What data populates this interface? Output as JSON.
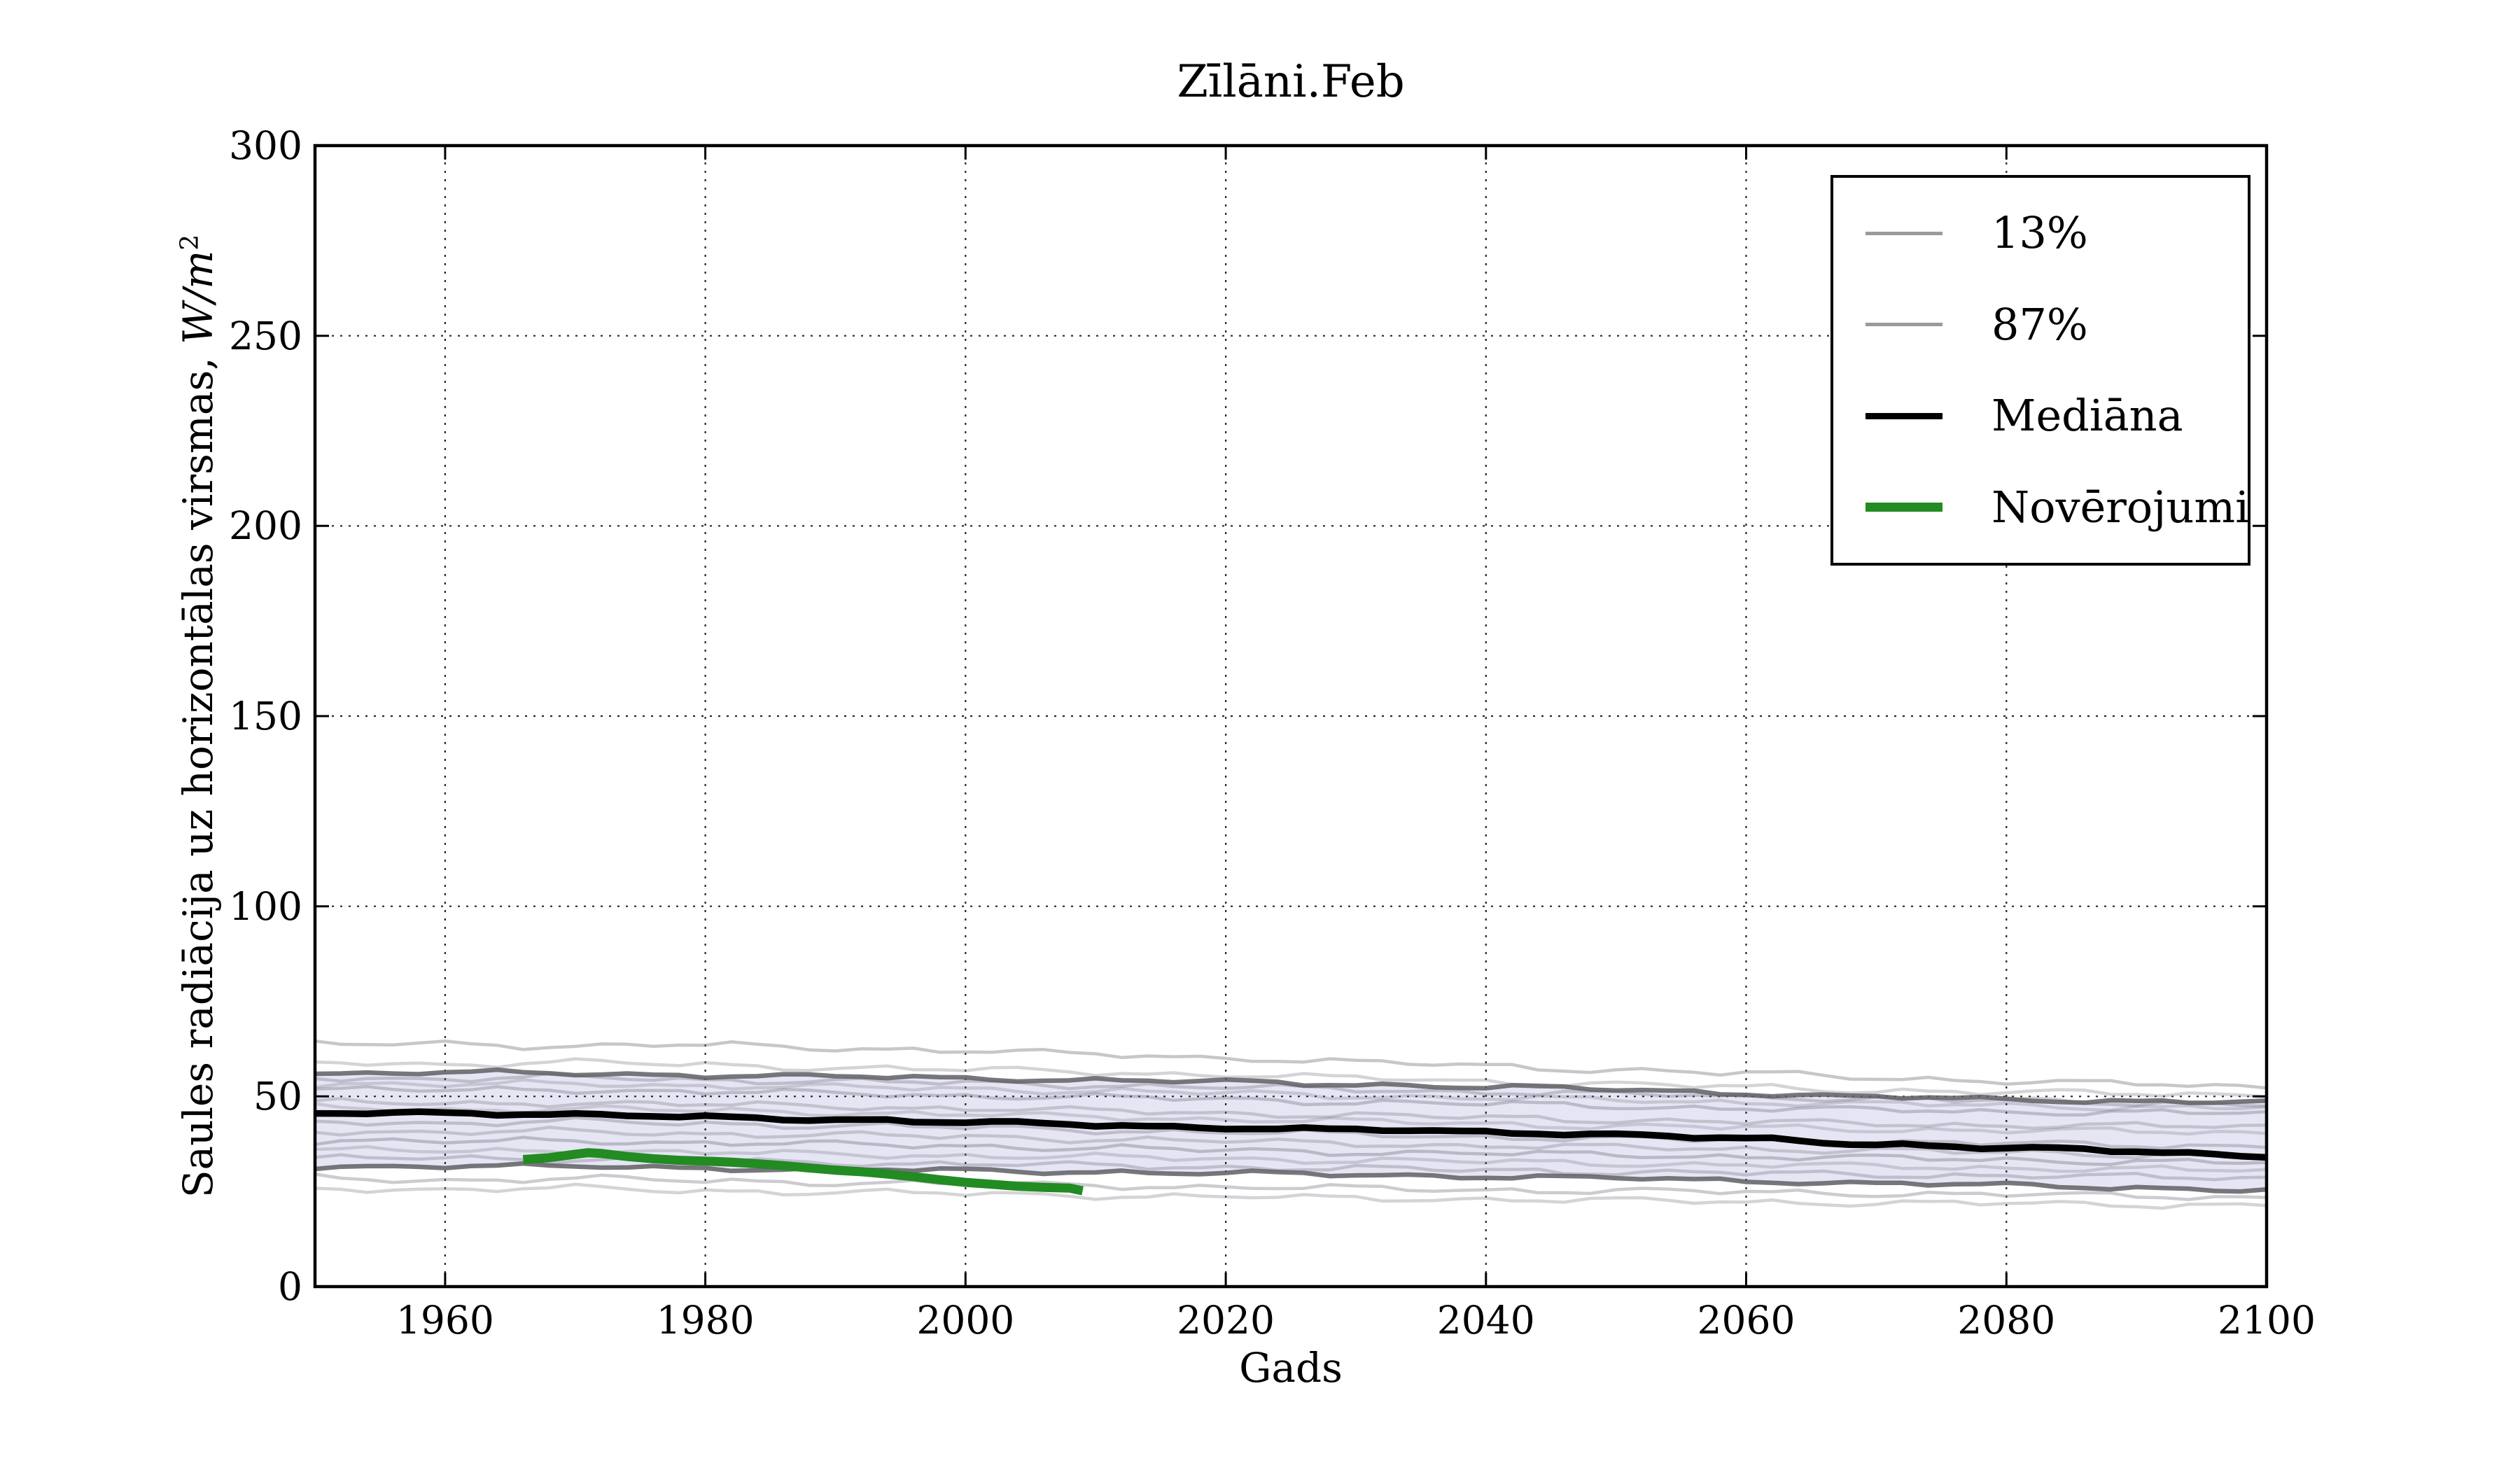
{
  "figure": {
    "title": "Zīlāni.Feb",
    "xlabel": "Gads",
    "ylabel_prefix": "Saules radiācija uz horizontālas virsmas, ",
    "ylabel_math": "W/m",
    "ylabel_exponent": "2"
  },
  "legend": {
    "items": [
      {
        "label": "13%",
        "color": "#9a9a9e",
        "weight": 5
      },
      {
        "label": "87%",
        "color": "#9a9a9e",
        "weight": 5
      },
      {
        "label": "Mediāna",
        "color": "#000000",
        "weight": 9
      },
      {
        "label": "Novērojumi",
        "color": "#228b22",
        "weight": 13
      }
    ]
  },
  "chart_data": {
    "type": "line",
    "title": "Zīlāni.Feb",
    "xlabel": "Gads",
    "ylabel": "Saules radiācija uz horizontālas virsmas, W/m^2",
    "xlim": [
      1950,
      2100
    ],
    "ylim": [
      0,
      300
    ],
    "xticks": [
      1960,
      1980,
      2000,
      2020,
      2040,
      2060,
      2080,
      2100
    ],
    "yticks": [
      0,
      50,
      100,
      150,
      200,
      250,
      300
    ],
    "grid": true,
    "grid_style": "dotted",
    "legend_position": "upper right",
    "band_fill": "rgba(163,163,214,0.28)",
    "anchor_years": [
      1950,
      1960,
      1970,
      1980,
      1990,
      2000,
      2010,
      2020,
      2030,
      2040,
      2050,
      2060,
      2070,
      2080,
      2090,
      2100
    ],
    "percentile_13": {
      "name": "13%",
      "color": "rgba(95,95,100,0.85)",
      "values": [
        31.5,
        31.8,
        31.5,
        31.2,
        30.8,
        30.5,
        30.2,
        29.8,
        29.4,
        29.0,
        28.5,
        27.8,
        27.2,
        26.6,
        26.0,
        25.4
      ]
    },
    "percentile_87": {
      "name": "87%",
      "color": "rgba(95,95,100,0.85)",
      "values": [
        56.0,
        56.3,
        56.0,
        55.6,
        55.2,
        54.8,
        54.3,
        53.8,
        53.2,
        52.5,
        51.8,
        50.8,
        49.8,
        49.2,
        48.8,
        48.4
      ]
    },
    "median": {
      "name": "Mediāna",
      "color": "#000000",
      "values": [
        45.5,
        45.8,
        45.2,
        44.5,
        44.0,
        43.2,
        42.5,
        41.8,
        41.2,
        40.7,
        40.0,
        38.8,
        37.5,
        36.5,
        35.5,
        34.3
      ]
    },
    "ensemble_members": [
      [
        63.5,
        64.0,
        63.2,
        63.5,
        62.8,
        62.0,
        61.0,
        60.2,
        59.0,
        58.0,
        57.0,
        56.0,
        55.0,
        54.0,
        53.2,
        52.5
      ],
      [
        59.0,
        58.5,
        59.0,
        58.2,
        57.6,
        57.0,
        56.4,
        55.6,
        54.8,
        54.0,
        53.2,
        52.4,
        51.6,
        51.0,
        50.8,
        50.5
      ],
      [
        55.0,
        54.6,
        55.0,
        54.4,
        54.0,
        53.5,
        53.0,
        52.4,
        51.8,
        51.2,
        50.6,
        50.0,
        49.4,
        48.8,
        48.4,
        48.0
      ],
      [
        53.5,
        53.0,
        53.4,
        52.8,
        52.4,
        52.0,
        51.4,
        50.8,
        50.2,
        49.6,
        49.0,
        48.5,
        48.0,
        47.6,
        47.2,
        47.0
      ],
      [
        52.0,
        51.5,
        51.8,
        51.2,
        50.8,
        50.2,
        49.8,
        49.2,
        48.6,
        48.0,
        47.4,
        46.9,
        46.4,
        46.0,
        45.8,
        45.5
      ],
      [
        48.5,
        48.0,
        48.4,
        47.8,
        47.4,
        46.8,
        46.2,
        45.6,
        45.0,
        44.4,
        43.8,
        43.3,
        42.8,
        42.4,
        42.2,
        42.0
      ],
      [
        47.0,
        46.5,
        46.8,
        46.2,
        45.8,
        45.2,
        44.6,
        44.0,
        43.4,
        42.8,
        42.2,
        41.8,
        41.4,
        41.0,
        40.8,
        40.5
      ],
      [
        43.5,
        43.0,
        43.4,
        42.8,
        42.4,
        41.8,
        41.2,
        40.6,
        40.0,
        39.4,
        38.8,
        38.4,
        38.0,
        37.6,
        37.2,
        37.0
      ],
      [
        41.0,
        40.5,
        40.8,
        40.2,
        39.8,
        39.4,
        38.8,
        38.2,
        37.6,
        37.0,
        36.6,
        36.2,
        35.8,
        35.2,
        34.8,
        34.5
      ],
      [
        38.5,
        38.0,
        38.4,
        37.8,
        37.4,
        37.0,
        36.4,
        35.8,
        35.4,
        35.0,
        34.6,
        34.2,
        33.8,
        33.3,
        32.9,
        32.5
      ],
      [
        36.0,
        35.5,
        35.8,
        35.2,
        34.8,
        34.4,
        34.0,
        33.6,
        33.2,
        32.8,
        32.4,
        32.0,
        31.6,
        31.2,
        30.8,
        30.5
      ],
      [
        33.5,
        34.0,
        33.4,
        33.0,
        32.6,
        32.2,
        31.8,
        31.4,
        31.0,
        30.6,
        30.2,
        29.8,
        29.4,
        29.2,
        28.8,
        28.5
      ],
      [
        28.5,
        28.0,
        28.4,
        27.8,
        27.4,
        27.0,
        26.6,
        26.2,
        25.8,
        25.4,
        25.2,
        24.8,
        24.5,
        24.2,
        23.8,
        23.5
      ],
      [
        26.0,
        25.5,
        25.8,
        25.2,
        24.8,
        24.4,
        24.0,
        23.6,
        23.2,
        23.0,
        22.6,
        22.3,
        22.0,
        21.8,
        21.6,
        21.5
      ]
    ],
    "observations": {
      "name": "Novērojumi",
      "color": "#228b22",
      "points": [
        [
          1966,
          33.4
        ],
        [
          1968,
          33.9
        ],
        [
          1970,
          34.8
        ],
        [
          1971,
          35.2
        ],
        [
          1972,
          35.0
        ],
        [
          1974,
          34.2
        ],
        [
          1976,
          33.6
        ],
        [
          1978,
          33.2
        ],
        [
          1980,
          33.0
        ],
        [
          1982,
          32.7
        ],
        [
          1984,
          32.3
        ],
        [
          1986,
          31.8
        ],
        [
          1988,
          31.2
        ],
        [
          1990,
          30.6
        ],
        [
          1992,
          30.2
        ],
        [
          1994,
          29.6
        ],
        [
          1996,
          28.9
        ],
        [
          1998,
          28.1
        ],
        [
          2000,
          27.4
        ],
        [
          2002,
          26.9
        ],
        [
          2004,
          26.4
        ],
        [
          2006,
          26.1
        ],
        [
          2008,
          25.9
        ],
        [
          2009,
          25.2
        ]
      ]
    }
  }
}
